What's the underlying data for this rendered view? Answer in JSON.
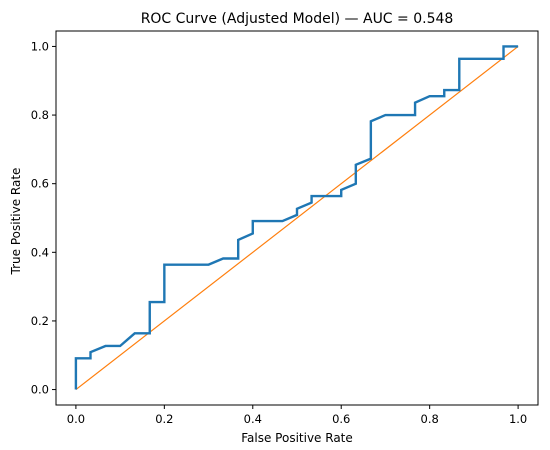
{
  "chart_data": {
    "type": "line",
    "title": "ROC Curve (Adjusted Model) — AUC = 0.548",
    "xlabel": "False Positive Rate",
    "ylabel": "True Positive Rate",
    "xlim": [
      -0.045,
      1.045
    ],
    "ylim": [
      -0.045,
      1.045
    ],
    "xticks": [
      0.0,
      0.2,
      0.4,
      0.6,
      0.8,
      1.0
    ],
    "yticks": [
      0.0,
      0.2,
      0.4,
      0.6,
      0.8,
      1.0
    ],
    "tick_labels": [
      "0.0",
      "0.2",
      "0.4",
      "0.6",
      "0.8",
      "1.0"
    ],
    "grid": false,
    "series": [
      {
        "kind": "roc",
        "color": "#1f77b4",
        "x": [
          0.0,
          0.0,
          0.033,
          0.033,
          0.067,
          0.1,
          0.133,
          0.167,
          0.167,
          0.2,
          0.2,
          0.3,
          0.333,
          0.367,
          0.367,
          0.4,
          0.4,
          0.467,
          0.5,
          0.5,
          0.533,
          0.533,
          0.6,
          0.6,
          0.633,
          0.633,
          0.667,
          0.667,
          0.7,
          0.767,
          0.767,
          0.8,
          0.833,
          0.833,
          0.867,
          0.867,
          0.967,
          0.967,
          1.0
        ],
        "y": [
          0.0,
          0.091,
          0.091,
          0.109,
          0.127,
          0.127,
          0.164,
          0.164,
          0.255,
          0.255,
          0.364,
          0.364,
          0.382,
          0.382,
          0.436,
          0.455,
          0.491,
          0.491,
          0.509,
          0.527,
          0.545,
          0.564,
          0.564,
          0.582,
          0.6,
          0.655,
          0.673,
          0.782,
          0.8,
          0.8,
          0.836,
          0.855,
          0.855,
          0.873,
          0.873,
          0.964,
          0.964,
          1.0,
          1.0
        ]
      },
      {
        "kind": "chance-line",
        "color": "#ff7f0e",
        "x": [
          0.0,
          1.0
        ],
        "y": [
          0.0,
          1.0
        ]
      }
    ]
  }
}
